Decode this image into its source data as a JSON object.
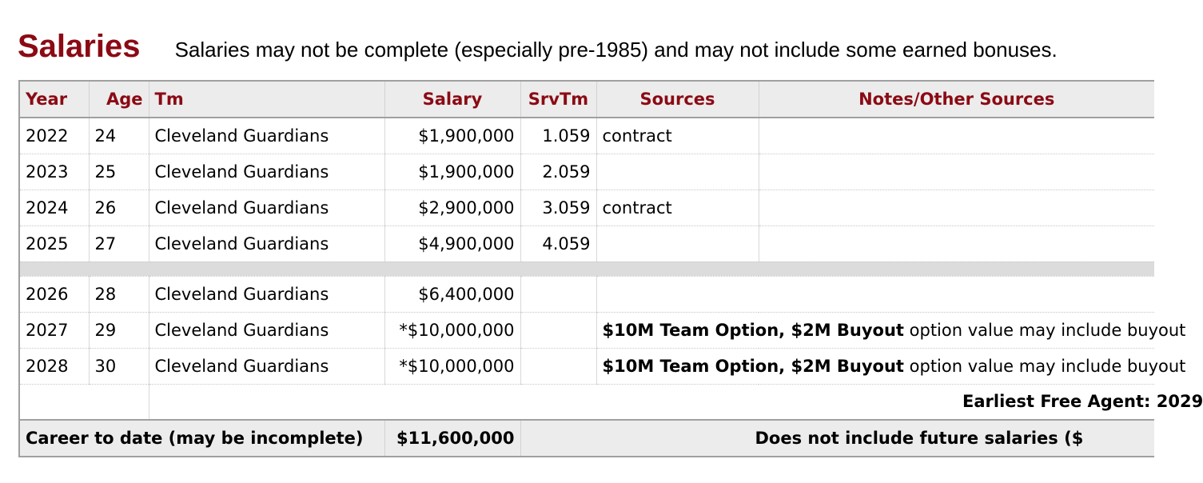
{
  "section": {
    "title": "Salaries",
    "note": "Salaries may not be complete (especially pre-1985) and may not include some earned bonuses."
  },
  "columns": {
    "year": "Year",
    "age": "Age",
    "team": "Tm",
    "salary": "Salary",
    "service_time": "SrvTm",
    "sources": "Sources",
    "notes": "Notes/Other Sources"
  },
  "rows": [
    {
      "year": "2022",
      "age": "24",
      "team": "Cleveland Guardians",
      "salary": "$1,900,000",
      "service_time": "1.059",
      "sources": "contract"
    },
    {
      "year": "2023",
      "age": "25",
      "team": "Cleveland Guardians",
      "salary": "$1,900,000",
      "service_time": "2.059",
      "sources": ""
    },
    {
      "year": "2024",
      "age": "26",
      "team": "Cleveland Guardians",
      "salary": "$2,900,000",
      "service_time": "3.059",
      "sources": "contract"
    },
    {
      "year": "2025",
      "age": "27",
      "team": "Cleveland Guardians",
      "salary": "$4,900,000",
      "service_time": "4.059",
      "sources": ""
    }
  ],
  "future_rows": [
    {
      "year": "2026",
      "age": "28",
      "team": "Cleveland Guardians",
      "salary": "$6,400,000",
      "option_bold": "",
      "option_note": ""
    },
    {
      "year": "2027",
      "age": "29",
      "team": "Cleveland Guardians",
      "salary": "*$10,000,000",
      "option_bold": "$10M Team Option, $2M Buyout",
      "option_note": " option value may include buyout"
    },
    {
      "year": "2028",
      "age": "30",
      "team": "Cleveland Guardians",
      "salary": "*$10,000,000",
      "option_bold": "$10M Team Option, $2M Buyout",
      "option_note": " option value may include buyout"
    }
  ],
  "free_agent": {
    "label": "Earliest Free Agent: 2029"
  },
  "footer": {
    "career_label": "Career to date (may be incomplete)",
    "career_total": "$11,600,000",
    "future_note": "Does not include future salaries ($"
  }
}
